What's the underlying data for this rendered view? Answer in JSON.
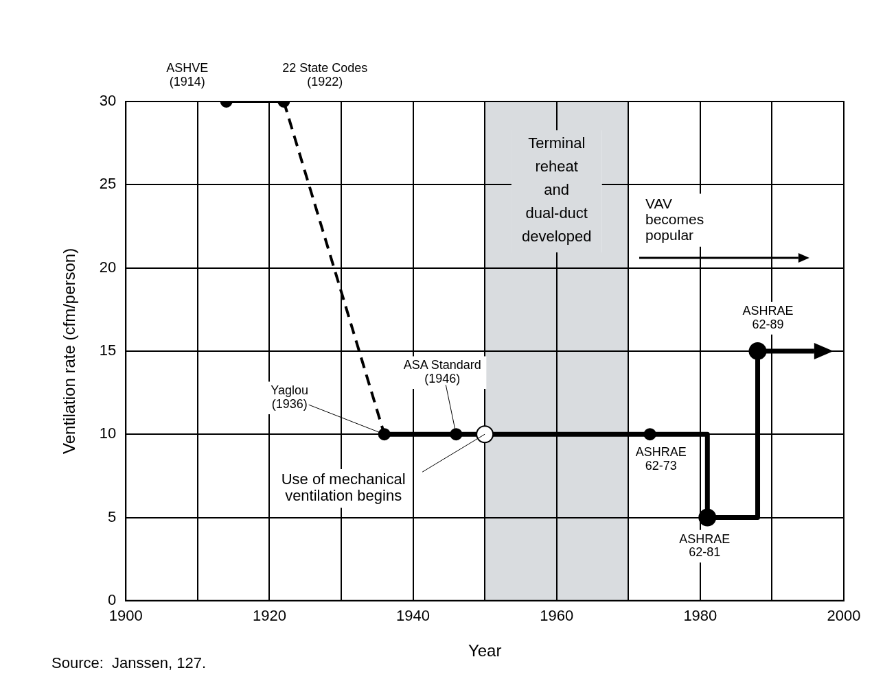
{
  "chart_data": {
    "type": "line",
    "xlabel": "Year",
    "ylabel": "Ventilation rate (cfm/person)",
    "xlim": [
      1900,
      2000
    ],
    "xticks": [
      1900,
      {
        "value": 1910,
        "label": null
      },
      1920,
      {
        "value": 1930,
        "label": null
      },
      1940,
      {
        "value": 1950,
        "label": null
      },
      1960,
      {
        "value": 1970,
        "label": null
      },
      1980,
      {
        "value": 1990,
        "label": null
      },
      2000
    ],
    "ylim": [
      0,
      30
    ],
    "yticks": [
      0,
      5,
      10,
      15,
      20,
      25,
      30
    ],
    "grid": true,
    "legend": false,
    "series": [
      {
        "color": "#000000",
        "x": [
          1914,
          1922
        ],
        "values": [
          30,
          30
        ],
        "line_style": "solid",
        "marker": "none"
      },
      {
        "color": "#000000",
        "x": [
          1922,
          1936
        ],
        "values": [
          30,
          10
        ],
        "line_style": "dashed",
        "marker": "none"
      },
      {
        "color": "#000000",
        "x": [
          1936,
          1946,
          1950,
          1973,
          1981,
          1981,
          1988,
          1988
        ],
        "values": [
          10,
          10,
          10,
          10,
          10,
          5,
          5,
          15
        ],
        "line_style": "solid",
        "marker": "none"
      },
      {
        "type": "scatter",
        "color": "#000000",
        "x": [
          1914,
          1922,
          1936,
          1946,
          1973
        ],
        "values": [
          30,
          30,
          10,
          10,
          10
        ],
        "marker": "circle"
      },
      {
        "type": "scatter",
        "color": "#000000",
        "x": [
          1981,
          1988
        ],
        "values": [
          5,
          15
        ],
        "marker": "circle"
      },
      {
        "type": "scatter",
        "color": "#ffffff",
        "x": [
          1950
        ],
        "values": [
          10
        ],
        "marker": "circle"
      }
    ],
    "bands": [
      {
        "axis": "x",
        "from": 1950,
        "to": 1970,
        "label": "Terminal\nreheat\nand\ndual-duct\ndeveloped",
        "color": "#d9dcdf"
      }
    ],
    "annotations": [
      {
        "text": "ASHVE\n(1914)",
        "x": 1914,
        "y": 30
      },
      {
        "text": "22 State Codes\n(1922)",
        "x": 1922,
        "y": 30
      },
      {
        "text": "Yaglou\n(1936)",
        "x": 1936,
        "y": 10
      },
      {
        "text": "ASA Standard\n(1946)",
        "x": 1946,
        "y": 10
      },
      {
        "text": "Use of mechanical\nventilation begins",
        "x": 1950,
        "y": 10
      },
      {
        "text": "ASHRAE\n62-73",
        "x": 1973,
        "y": 10
      },
      {
        "text": "ASHRAE\n62-81",
        "x": 1981,
        "y": 5
      },
      {
        "text": "ASHRAE\n62-89",
        "x": 1988,
        "y": 15
      },
      "VAV\nbecomes\npopular",
      "Source:  Janssen, 127."
    ]
  }
}
